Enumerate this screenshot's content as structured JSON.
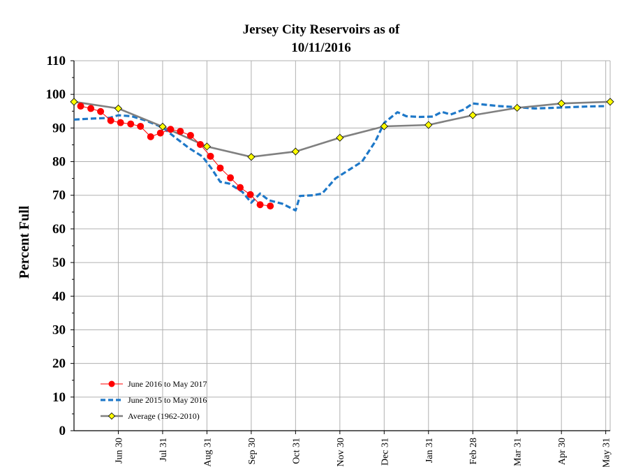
{
  "chart_data": {
    "type": "line",
    "title_line1": "Jersey City Reservoirs as of",
    "title_line2": "10/11/2016",
    "ylabel": "Percent Full",
    "xlabel": "",
    "ylim": [
      0,
      110
    ],
    "yticks": [
      0,
      10,
      20,
      30,
      40,
      50,
      60,
      70,
      80,
      90,
      100,
      110
    ],
    "grid": true,
    "legend_placement": "bottom-left",
    "x_categories": [
      "Jun 30",
      "Jul 31",
      "Aug 31",
      "Sep 30",
      "Oct 31",
      "Nov 30",
      "Dec 31",
      "Jan 31",
      "Feb 28",
      "Mar 31",
      "Apr 30",
      "May 31"
    ],
    "x_tick_positions": [
      1,
      2,
      3,
      4,
      5,
      6,
      7,
      8,
      9,
      10,
      11,
      12
    ],
    "xlim": [
      0,
      12.1
    ],
    "series": [
      {
        "name": "June 2016 to May 2017",
        "color": "#ff0000",
        "style": "solid-with-circle-markers",
        "x": [
          0.15,
          0.38,
          0.6,
          0.83,
          1.05,
          1.28,
          1.5,
          1.73,
          1.95,
          2.18,
          2.4,
          2.63,
          2.85,
          3.08,
          3.3,
          3.53,
          3.75,
          3.98,
          4.2,
          4.43
        ],
        "values": [
          96.5,
          95.8,
          94.9,
          92.2,
          91.6,
          91.2,
          90.5,
          87.4,
          88.5,
          89.6,
          89.0,
          87.8,
          85.1,
          81.6,
          78.1,
          75.2,
          72.3,
          70.2,
          67.2,
          66.8
        ]
      },
      {
        "name": "June 2015 to May 2016",
        "color": "#1e78c8",
        "style": "dashed",
        "x": [
          0,
          0.4,
          0.8,
          1.0,
          1.3,
          1.6,
          2.0,
          2.3,
          2.6,
          2.9,
          3.1,
          3.3,
          3.5,
          3.8,
          4.0,
          4.2,
          4.4,
          4.7,
          5.0,
          5.1,
          5.4,
          5.6,
          5.9,
          6.2,
          6.5,
          6.8,
          7.0,
          7.3,
          7.5,
          7.8,
          8.1,
          8.3,
          8.5,
          8.8,
          9.0,
          9.3,
          9.6,
          10.0,
          10.4,
          10.8,
          11.2,
          11.6,
          12.0
        ],
        "values": [
          92.5,
          92.8,
          93.0,
          93.8,
          93.5,
          92.3,
          90.2,
          87.0,
          84.0,
          81.5,
          78.0,
          74.0,
          73.5,
          71.0,
          67.8,
          70.5,
          68.5,
          67.5,
          65.5,
          69.8,
          70.0,
          70.5,
          75.0,
          77.5,
          80.0,
          86.0,
          91.5,
          94.7,
          93.5,
          93.3,
          93.4,
          94.8,
          94.0,
          95.5,
          97.3,
          96.9,
          96.5,
          96.2,
          95.8,
          96.0,
          96.2,
          96.4,
          96.5
        ]
      },
      {
        "name": "Average (1962-2010)",
        "color": "#808080",
        "marker_color": "#ffff00",
        "style": "solid-with-diamond-markers",
        "x": [
          0,
          1,
          2,
          3,
          4,
          5,
          6,
          7,
          8,
          9,
          10,
          11,
          12.1
        ],
        "values": [
          97.8,
          95.8,
          90.4,
          84.5,
          81.4,
          83.0,
          87.1,
          90.5,
          90.9,
          93.8,
          96.0,
          97.3,
          97.8
        ]
      }
    ]
  }
}
